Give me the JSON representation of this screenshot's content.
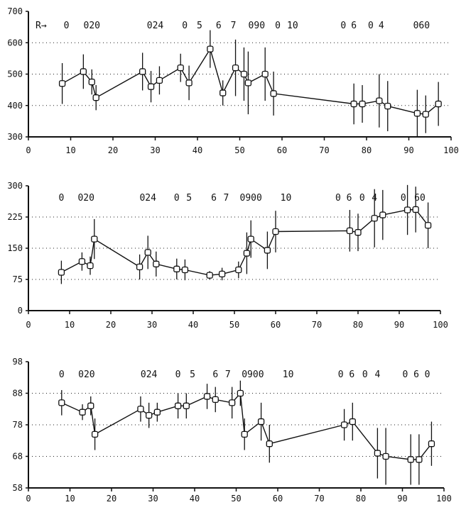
{
  "chart_data": [
    {
      "type": "line",
      "title": "",
      "xlabel": "",
      "ylabel": "",
      "xlim": [
        0,
        100
      ],
      "ylim": [
        300,
        700
      ],
      "xticks": [
        0,
        10,
        20,
        30,
        40,
        50,
        60,
        70,
        80,
        90,
        100
      ],
      "yticks": [
        300,
        400,
        500,
        600,
        700
      ],
      "ygrid": [
        400,
        500,
        600
      ],
      "grid": "horizontal dotted",
      "code_labels": [
        {
          "x": 3,
          "text": "R→"
        },
        {
          "x": 9,
          "text": "0"
        },
        {
          "x": 15,
          "text": "020"
        },
        {
          "x": 30,
          "text": "024"
        },
        {
          "x": 37,
          "text": "0"
        },
        {
          "x": 40.5,
          "text": "5"
        },
        {
          "x": 45,
          "text": "6"
        },
        {
          "x": 48.5,
          "text": "7"
        },
        {
          "x": 54,
          "text": "090"
        },
        {
          "x": 59,
          "text": "0"
        },
        {
          "x": 62.5,
          "text": "10"
        },
        {
          "x": 74.5,
          "text": "0"
        },
        {
          "x": 77,
          "text": "6"
        },
        {
          "x": 81,
          "text": "0"
        },
        {
          "x": 83.5,
          "text": "4"
        },
        {
          "x": 93,
          "text": "060"
        }
      ],
      "points": [
        {
          "x": 8,
          "y": 470,
          "err": 65
        },
        {
          "x": 13,
          "y": 508,
          "err": 55
        },
        {
          "x": 15,
          "y": 475,
          "err": 40
        },
        {
          "x": 16,
          "y": 425,
          "err": 40
        },
        {
          "x": 27,
          "y": 508,
          "err": 60
        },
        {
          "x": 29,
          "y": 460,
          "err": 50
        },
        {
          "x": 31,
          "y": 480,
          "err": 45
        },
        {
          "x": 36,
          "y": 520,
          "err": 45
        },
        {
          "x": 38,
          "y": 472,
          "err": 55
        },
        {
          "x": 43,
          "y": 580,
          "err": 60
        },
        {
          "x": 46,
          "y": 440,
          "err": 40
        },
        {
          "x": 49,
          "y": 520,
          "err": 90
        },
        {
          "x": 51,
          "y": 500,
          "err": 85
        },
        {
          "x": 52,
          "y": 472,
          "err": 100
        },
        {
          "x": 56,
          "y": 500,
          "err": 85
        },
        {
          "x": 58,
          "y": 438,
          "err": 70
        },
        {
          "x": 77,
          "y": 405,
          "err": 65
        },
        {
          "x": 79,
          "y": 405,
          "err": 60
        },
        {
          "x": 83,
          "y": 415,
          "err": 85
        },
        {
          "x": 85,
          "y": 398,
          "err": 80
        },
        {
          "x": 92,
          "y": 375,
          "err": 75
        },
        {
          "x": 94,
          "y": 372,
          "err": 60
        },
        {
          "x": 97,
          "y": 405,
          "err": 70
        }
      ]
    },
    {
      "type": "line",
      "title": "",
      "xlabel": "",
      "ylabel": "",
      "xlim": [
        0,
        100
      ],
      "ylim": [
        0,
        300
      ],
      "xticks": [
        0,
        10,
        20,
        30,
        40,
        50,
        60,
        70,
        80,
        90,
        100
      ],
      "yticks": [
        0,
        75,
        150,
        225,
        300
      ],
      "ygrid": [
        75,
        150,
        225
      ],
      "grid": "horizontal dotted",
      "code_labels": [
        {
          "x": 8,
          "text": "0"
        },
        {
          "x": 14,
          "text": "020"
        },
        {
          "x": 29,
          "text": "024"
        },
        {
          "x": 36,
          "text": "0"
        },
        {
          "x": 39,
          "text": "5"
        },
        {
          "x": 45,
          "text": "6"
        },
        {
          "x": 48,
          "text": "7"
        },
        {
          "x": 54,
          "text": "0900"
        },
        {
          "x": 62.5,
          "text": "10"
        },
        {
          "x": 76.5,
          "text": "0 6"
        },
        {
          "x": 81,
          "text": "0"
        },
        {
          "x": 84,
          "text": "4"
        },
        {
          "x": 91,
          "text": "0"
        },
        {
          "x": 95,
          "text": "60"
        }
      ],
      "points": [
        {
          "x": 8,
          "y": 92,
          "err": 28
        },
        {
          "x": 13,
          "y": 118,
          "err": 22
        },
        {
          "x": 15,
          "y": 108,
          "err": 22
        },
        {
          "x": 16,
          "y": 172,
          "err": 48
        },
        {
          "x": 27,
          "y": 105,
          "err": 30
        },
        {
          "x": 29,
          "y": 140,
          "err": 40
        },
        {
          "x": 31,
          "y": 112,
          "err": 30
        },
        {
          "x": 36,
          "y": 100,
          "err": 25
        },
        {
          "x": 38,
          "y": 98,
          "err": 25
        },
        {
          "x": 44,
          "y": 85,
          "err": 10
        },
        {
          "x": 47,
          "y": 88,
          "err": 15
        },
        {
          "x": 51,
          "y": 98,
          "err": 20
        },
        {
          "x": 53,
          "y": 138,
          "err": 50
        },
        {
          "x": 54,
          "y": 172,
          "err": 45
        },
        {
          "x": 58,
          "y": 145,
          "err": 45
        },
        {
          "x": 60,
          "y": 190,
          "err": 50
        },
        {
          "x": 78,
          "y": 192,
          "err": 50
        },
        {
          "x": 80,
          "y": 188,
          "err": 45
        },
        {
          "x": 84,
          "y": 222,
          "err": 70
        },
        {
          "x": 86,
          "y": 230,
          "err": 60
        },
        {
          "x": 92,
          "y": 242,
          "err": 60
        },
        {
          "x": 94,
          "y": 243,
          "err": 55
        },
        {
          "x": 97,
          "y": 205,
          "err": 55
        }
      ]
    },
    {
      "type": "line",
      "title": "",
      "xlabel": "",
      "ylabel": "",
      "xlim": [
        0,
        100
      ],
      "ylim": [
        58,
        98
      ],
      "xticks": [
        0,
        10,
        20,
        30,
        40,
        50,
        60,
        70,
        80,
        90,
        100
      ],
      "yticks": [
        58,
        68,
        78,
        88,
        98
      ],
      "ygrid": [
        68,
        78,
        88
      ],
      "grid": "horizontal dotted",
      "code_labels": [
        {
          "x": 8,
          "text": "0"
        },
        {
          "x": 14,
          "text": "020"
        },
        {
          "x": 29,
          "text": "024"
        },
        {
          "x": 36,
          "text": "0"
        },
        {
          "x": 39.5,
          "text": "5"
        },
        {
          "x": 45,
          "text": "6"
        },
        {
          "x": 48,
          "text": "7"
        },
        {
          "x": 54,
          "text": "0900"
        },
        {
          "x": 62.5,
          "text": "10"
        },
        {
          "x": 76.5,
          "text": "0 6"
        },
        {
          "x": 81,
          "text": "0"
        },
        {
          "x": 84,
          "text": "4"
        },
        {
          "x": 92,
          "text": "0 6"
        },
        {
          "x": 96,
          "text": "0"
        }
      ],
      "points": [
        {
          "x": 8,
          "y": 85,
          "err": 4
        },
        {
          "x": 13,
          "y": 82,
          "err": 2.5
        },
        {
          "x": 15,
          "y": 84,
          "err": 3
        },
        {
          "x": 16,
          "y": 75,
          "err": 5
        },
        {
          "x": 27,
          "y": 83,
          "err": 4
        },
        {
          "x": 29,
          "y": 81,
          "err": 4
        },
        {
          "x": 31,
          "y": 82,
          "err": 3
        },
        {
          "x": 36,
          "y": 84,
          "err": 4
        },
        {
          "x": 38,
          "y": 84,
          "err": 4
        },
        {
          "x": 43,
          "y": 87,
          "err": 4
        },
        {
          "x": 45,
          "y": 86,
          "err": 4
        },
        {
          "x": 49,
          "y": 85,
          "err": 5
        },
        {
          "x": 51,
          "y": 88,
          "err": 4
        },
        {
          "x": 52,
          "y": 75,
          "err": 5
        },
        {
          "x": 56,
          "y": 79,
          "err": 6
        },
        {
          "x": 58,
          "y": 72,
          "err": 6
        },
        {
          "x": 76,
          "y": 78,
          "err": 5
        },
        {
          "x": 78,
          "y": 79,
          "err": 6
        },
        {
          "x": 84,
          "y": 69,
          "err": 8
        },
        {
          "x": 86,
          "y": 68,
          "err": 9
        },
        {
          "x": 92,
          "y": 67,
          "err": 8
        },
        {
          "x": 94,
          "y": 67,
          "err": 8
        },
        {
          "x": 97,
          "y": 72,
          "err": 7
        }
      ]
    }
  ]
}
